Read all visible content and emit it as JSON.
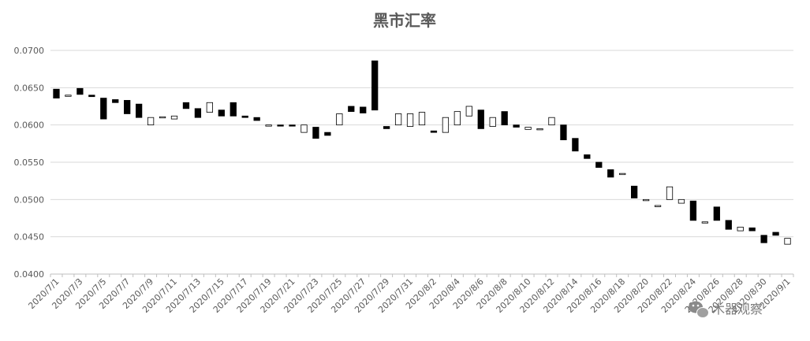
{
  "chart_data": {
    "type": "candlestick",
    "title": "黑市汇率",
    "ylim": [
      0.04,
      0.07
    ],
    "yticks": [
      "0.0400",
      "0.0450",
      "0.0500",
      "0.0550",
      "0.0600",
      "0.0650",
      "0.0700"
    ],
    "grid": true,
    "legend": "none",
    "colors": {
      "up_fill": "#ffffff",
      "down_fill": "#000000",
      "stroke": "#000000"
    },
    "x": [
      "2020/7/1",
      "2020/7/2",
      "2020/7/3",
      "2020/7/4",
      "2020/7/5",
      "2020/7/6",
      "2020/7/7",
      "2020/7/8",
      "2020/7/9",
      "2020/7/10",
      "2020/7/11",
      "2020/7/12",
      "2020/7/13",
      "2020/7/14",
      "2020/7/15",
      "2020/7/16",
      "2020/7/17",
      "2020/7/18",
      "2020/7/19",
      "2020/7/20",
      "2020/7/21",
      "2020/7/22",
      "2020/7/23",
      "2020/7/24",
      "2020/7/25",
      "2020/7/26",
      "2020/7/27",
      "2020/7/28",
      "2020/7/29",
      "2020/7/30",
      "2020/7/31",
      "2020/8/1",
      "2020/8/2",
      "2020/8/3",
      "2020/8/4",
      "2020/8/5",
      "2020/8/6",
      "2020/8/7",
      "2020/8/8",
      "2020/8/9",
      "2020/8/10",
      "2020/8/11",
      "2020/8/12",
      "2020/8/13",
      "2020/8/14",
      "2020/8/15",
      "2020/8/16",
      "2020/8/17",
      "2020/8/18",
      "2020/8/19",
      "2020/8/20",
      "2020/8/21",
      "2020/8/22",
      "2020/8/23",
      "2020/8/24",
      "2020/8/25",
      "2020/8/26",
      "2020/8/27",
      "2020/8/28",
      "2020/8/29",
      "2020/8/30",
      "2020/8/31",
      "2020/9/1"
    ],
    "x_tick_labels": [
      "2020/7/1",
      "2020/7/3",
      "2020/7/5",
      "2020/7/7",
      "2020/7/9",
      "2020/7/11",
      "2020/7/13",
      "2020/7/15",
      "2020/7/17",
      "2020/7/19",
      "2020/7/21",
      "2020/7/23",
      "2020/7/25",
      "2020/7/27",
      "2020/7/29",
      "2020/7/31",
      "2020/8/2",
      "2020/8/4",
      "2020/8/6",
      "2020/8/8",
      "2020/8/10",
      "2020/8/12",
      "2020/8/14",
      "2020/8/16",
      "2020/8/18",
      "2020/8/20",
      "2020/8/22",
      "2020/8/24",
      "2020/8/26",
      "2020/8/28",
      "2020/8/30",
      "2020/9/1"
    ],
    "series": [
      {
        "open": [
          0.0648,
          0.064,
          0.0649,
          0.064,
          0.0636,
          0.0634,
          0.0633,
          0.0628,
          0.06,
          0.0611,
          0.0608,
          0.063,
          0.0622,
          0.0617,
          0.062,
          0.063,
          0.0612,
          0.061,
          0.06,
          0.06,
          0.06,
          0.059,
          0.0597,
          0.059,
          0.06,
          0.0625,
          0.0624,
          0.0686,
          0.0598,
          0.06,
          0.0598,
          0.06,
          0.0592,
          0.059,
          0.06,
          0.0612,
          0.062,
          0.0598,
          0.0618,
          0.06,
          0.0594,
          0.0595,
          0.06,
          0.06,
          0.0582,
          0.056,
          0.055,
          0.054,
          0.0535,
          0.0518,
          0.05,
          0.0492,
          0.05,
          0.0495,
          0.0498,
          0.047,
          0.049,
          0.0472,
          0.0458,
          0.0462,
          0.0452,
          0.0456,
          0.044
        ],
        "close": [
          0.0636,
          0.064,
          0.0641,
          0.0638,
          0.0608,
          0.063,
          0.0615,
          0.061,
          0.061,
          0.0611,
          0.0612,
          0.0622,
          0.061,
          0.063,
          0.0612,
          0.0612,
          0.061,
          0.0606,
          0.06,
          0.0599,
          0.0599,
          0.06,
          0.0582,
          0.0586,
          0.0615,
          0.0618,
          0.0616,
          0.062,
          0.0595,
          0.0615,
          0.0615,
          0.0617,
          0.059,
          0.061,
          0.0618,
          0.0625,
          0.0595,
          0.061,
          0.06,
          0.0597,
          0.0597,
          0.0595,
          0.061,
          0.058,
          0.0565,
          0.0555,
          0.0543,
          0.053,
          0.0535,
          0.0502,
          0.05,
          0.0492,
          0.0517,
          0.05,
          0.0472,
          0.047,
          0.0472,
          0.046,
          0.0463,
          0.0458,
          0.0442,
          0.0452,
          0.0448
        ]
      }
    ]
  },
  "watermark": {
    "text": "木器观察",
    "icon": "wechat-icon"
  }
}
